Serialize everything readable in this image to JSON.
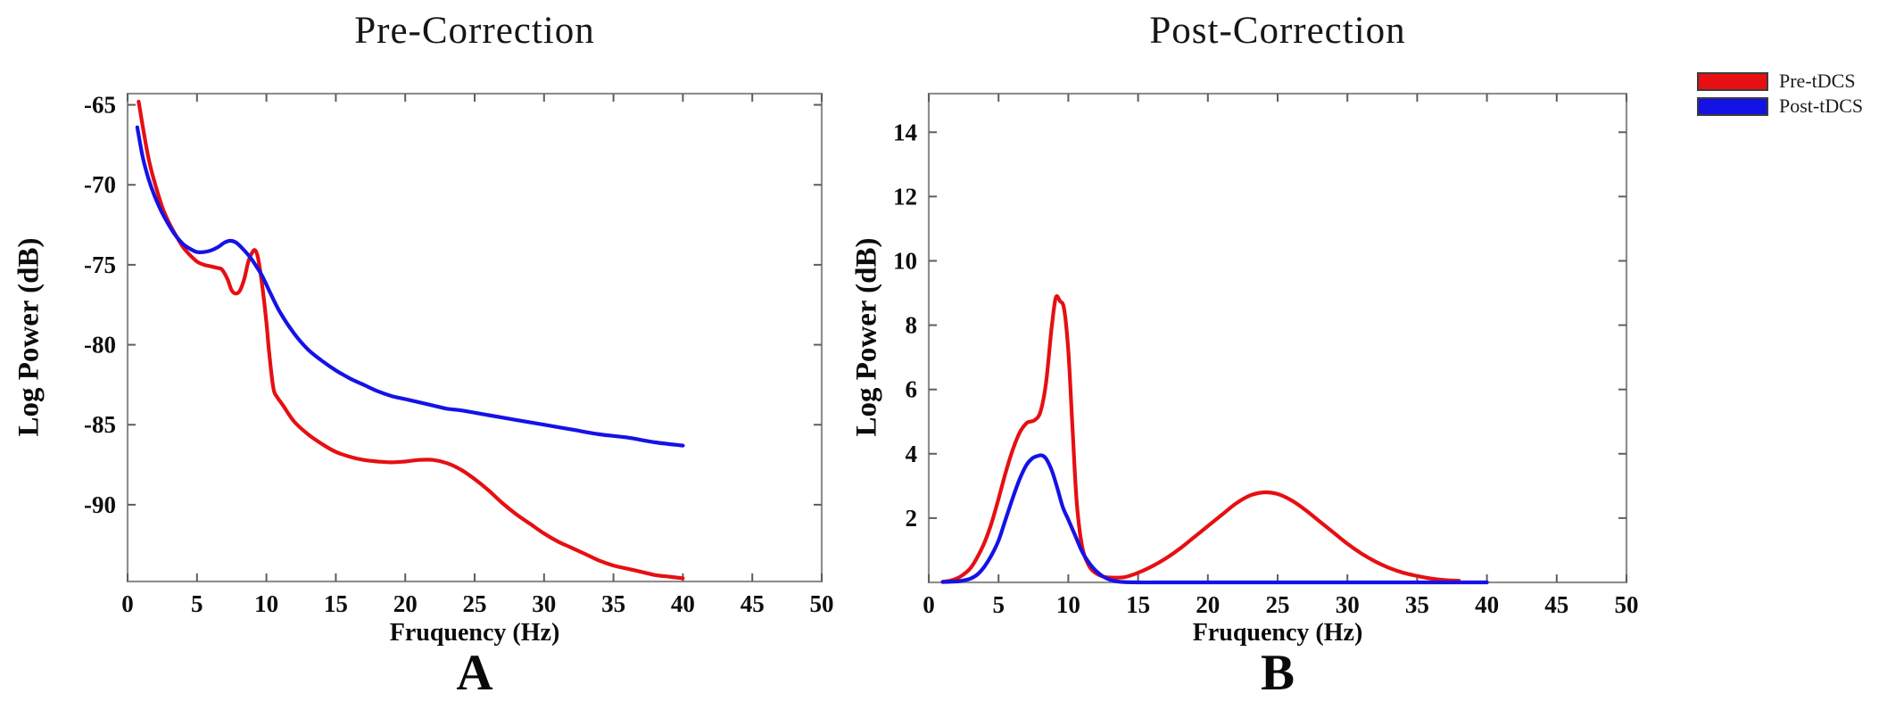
{
  "figure": {
    "background": "#ffffff",
    "panels": [
      {
        "letter": "A",
        "title": "Pre-Correction",
        "xlabel": "Fruquency (Hz)",
        "ylabel": "Log Power (dB)"
      },
      {
        "letter": "B",
        "title": "Post-Correction",
        "xlabel": "Fruquency (Hz)",
        "ylabel": "Log Power (dB)"
      }
    ],
    "legend": {
      "items": [
        {
          "label": "Pre-tDCS",
          "color": "#e60f12"
        },
        {
          "label": "Post-tDCS",
          "color": "#1512e6"
        }
      ]
    }
  },
  "chart_data": [
    {
      "type": "line",
      "title": "Pre-Correction",
      "xlabel": "Fruquency (Hz)",
      "ylabel": "Log Power (dB)",
      "xlim": [
        0,
        50
      ],
      "ylim": [
        -94.8,
        -64.3
      ],
      "xticks": [
        0,
        5,
        10,
        15,
        20,
        25,
        30,
        35,
        40,
        45,
        50
      ],
      "yticks": [
        -90,
        -85,
        -80,
        -75,
        -70,
        -65
      ],
      "grid": false,
      "legend_position": "figure-top-right-outside",
      "series": [
        {
          "name": "Pre-tDCS",
          "color": "#e60f12",
          "x": [
            0.8,
            1.2,
            1.6,
            2.0,
            2.5,
            3.0,
            3.5,
            4.0,
            4.5,
            5.0,
            5.5,
            6.0,
            6.5,
            6.8,
            7.2,
            7.5,
            7.8,
            8.1,
            8.4,
            8.7,
            9.0,
            9.2,
            9.4,
            9.7,
            10.0,
            10.2,
            10.5,
            10.8,
            11.2,
            12,
            13,
            14,
            15,
            16,
            17,
            18,
            19,
            20,
            21,
            22,
            23,
            24,
            25,
            26,
            27,
            28,
            29,
            30,
            31,
            32,
            33,
            34,
            35,
            36,
            37,
            38,
            39,
            40
          ],
          "y": [
            -64.8,
            -66.9,
            -68.7,
            -70.0,
            -71.4,
            -72.4,
            -73.2,
            -73.9,
            -74.4,
            -74.8,
            -75.0,
            -75.1,
            -75.2,
            -75.3,
            -75.9,
            -76.6,
            -76.8,
            -76.6,
            -75.9,
            -74.8,
            -74.2,
            -74.1,
            -74.6,
            -76.3,
            -78.6,
            -80.5,
            -82.7,
            -83.3,
            -83.8,
            -84.8,
            -85.6,
            -86.2,
            -86.7,
            -87.0,
            -87.2,
            -87.3,
            -87.35,
            -87.3,
            -87.2,
            -87.2,
            -87.4,
            -87.8,
            -88.4,
            -89.1,
            -89.9,
            -90.6,
            -91.2,
            -91.8,
            -92.3,
            -92.7,
            -93.1,
            -93.5,
            -93.8,
            -94.0,
            -94.2,
            -94.4,
            -94.5,
            -94.6
          ]
        },
        {
          "name": "Post-tDCS",
          "color": "#1512e6",
          "x": [
            0.7,
            1.1,
            1.5,
            1.9,
            2.4,
            2.9,
            3.4,
            4.0,
            4.5,
            5.0,
            5.5,
            6.0,
            6.5,
            7.0,
            7.4,
            7.8,
            8.3,
            8.8,
            9.2,
            9.7,
            10.3,
            11,
            12,
            13,
            14,
            15,
            16,
            17,
            18,
            19,
            20,
            21,
            22,
            23,
            24,
            26,
            28,
            30,
            32,
            34,
            36,
            38,
            40
          ],
          "y": [
            -66.4,
            -68.3,
            -69.6,
            -70.6,
            -71.6,
            -72.4,
            -73.1,
            -73.7,
            -74.0,
            -74.2,
            -74.2,
            -74.1,
            -73.9,
            -73.6,
            -73.5,
            -73.6,
            -74.0,
            -74.5,
            -75.0,
            -75.7,
            -76.8,
            -78.0,
            -79.3,
            -80.3,
            -81.0,
            -81.6,
            -82.1,
            -82.5,
            -82.9,
            -83.2,
            -83.4,
            -83.6,
            -83.8,
            -84.0,
            -84.1,
            -84.4,
            -84.7,
            -85.0,
            -85.3,
            -85.6,
            -85.8,
            -86.1,
            -86.3
          ]
        }
      ]
    },
    {
      "type": "line",
      "title": "Post-Correction",
      "xlabel": "Fruquency (Hz)",
      "ylabel": "Log Power (dB)",
      "xlim": [
        0,
        50
      ],
      "ylim": [
        0,
        15.2
      ],
      "xticks": [
        0,
        5,
        10,
        15,
        20,
        25,
        30,
        35,
        40,
        45,
        50
      ],
      "yticks": [
        2,
        4,
        6,
        8,
        10,
        12,
        14
      ],
      "grid": false,
      "legend_position": "figure-top-right-outside",
      "series": [
        {
          "name": "Pre-tDCS",
          "color": "#e60f12",
          "x": [
            1,
            1.5,
            2,
            2.5,
            3,
            3.5,
            4,
            4.5,
            5,
            5.5,
            6,
            6.5,
            7,
            7.3,
            7.6,
            8,
            8.4,
            8.8,
            9.1,
            9.4,
            9.7,
            10,
            10.3,
            10.6,
            11,
            11.5,
            12,
            12.5,
            13,
            14,
            15,
            16,
            17,
            18,
            19,
            20,
            21,
            22,
            23,
            24,
            25,
            26,
            27,
            28,
            29,
            30,
            31,
            32,
            33,
            34,
            35,
            36,
            37,
            38
          ],
          "y": [
            0.02,
            0.05,
            0.12,
            0.25,
            0.45,
            0.8,
            1.25,
            1.85,
            2.6,
            3.4,
            4.1,
            4.65,
            4.95,
            5.0,
            5.05,
            5.3,
            6.2,
            7.9,
            8.85,
            8.75,
            8.5,
            7.2,
            4.8,
            2.5,
            1.1,
            0.5,
            0.28,
            0.18,
            0.15,
            0.16,
            0.3,
            0.5,
            0.75,
            1.05,
            1.4,
            1.75,
            2.1,
            2.45,
            2.7,
            2.8,
            2.75,
            2.55,
            2.25,
            1.9,
            1.55,
            1.2,
            0.9,
            0.65,
            0.45,
            0.3,
            0.2,
            0.12,
            0.07,
            0.05
          ]
        },
        {
          "name": "Post-tDCS",
          "color": "#1512e6",
          "x": [
            1,
            2,
            2.5,
            3,
            3.5,
            4,
            4.5,
            5,
            5.5,
            6,
            6.5,
            7,
            7.4,
            7.8,
            8.1,
            8.4,
            8.8,
            9.2,
            9.6,
            10,
            10.5,
            11,
            11.5,
            12,
            12.5,
            13,
            13.5,
            14,
            15,
            17,
            20,
            25,
            30,
            35,
            40
          ],
          "y": [
            0.01,
            0.03,
            0.06,
            0.12,
            0.25,
            0.5,
            0.85,
            1.3,
            1.95,
            2.6,
            3.2,
            3.65,
            3.85,
            3.93,
            3.95,
            3.85,
            3.5,
            2.95,
            2.35,
            1.95,
            1.45,
            0.95,
            0.6,
            0.35,
            0.18,
            0.08,
            0.03,
            0.01,
            0,
            0,
            0,
            0,
            0,
            0,
            0
          ]
        }
      ]
    }
  ]
}
